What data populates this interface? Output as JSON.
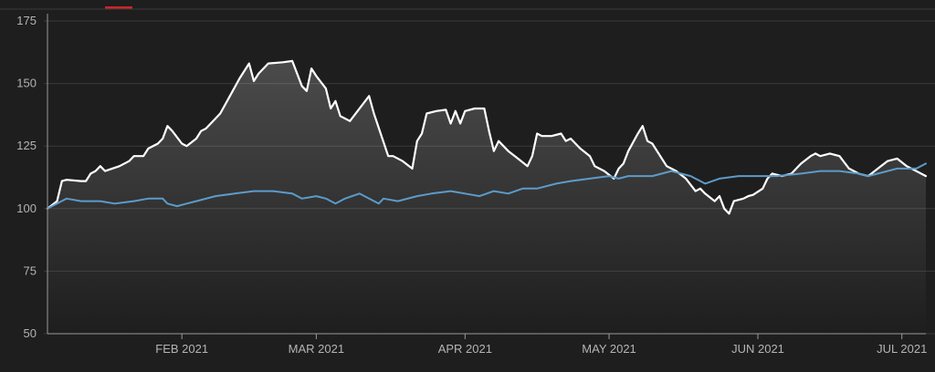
{
  "colors": {
    "background": "#1e1e1e",
    "grid": "#3a3a3a",
    "axis_text": "#b4b4b4",
    "primary_series": "#ffffff",
    "benchmark_series": "#5d9bc9",
    "accent_tab": "#c8262d"
  },
  "chart_data": {
    "type": "line",
    "title": "",
    "xlabel": "",
    "ylabel": "",
    "ylim": [
      50,
      175
    ],
    "yticks": [
      50,
      75,
      100,
      125,
      150,
      175
    ],
    "x_range": [
      "2021-01-04",
      "2021-07-06"
    ],
    "xticks": [
      {
        "date": "2021-02-01",
        "label": "FEB 2021"
      },
      {
        "date": "2021-03-01",
        "label": "MAR 2021"
      },
      {
        "date": "2021-04-01",
        "label": "APR 2021"
      },
      {
        "date": "2021-05-01",
        "label": "MAY 2021"
      },
      {
        "date": "2021-06-01",
        "label": "JUN 2021"
      },
      {
        "date": "2021-07-01",
        "label": "JUL 2021"
      }
    ],
    "grid": "horizontal",
    "legend": "none",
    "series": [
      {
        "color": "#ffffff",
        "area_fill": true,
        "points": [
          [
            "2021-01-04",
            100
          ],
          [
            "2021-01-06",
            103
          ],
          [
            "2021-01-07",
            111
          ],
          [
            "2021-01-08",
            111.5
          ],
          [
            "2021-01-11",
            111
          ],
          [
            "2021-01-12",
            111
          ],
          [
            "2021-01-13",
            114
          ],
          [
            "2021-01-14",
            115
          ],
          [
            "2021-01-15",
            117
          ],
          [
            "2021-01-16",
            115
          ],
          [
            "2021-01-19",
            117
          ],
          [
            "2021-01-21",
            119
          ],
          [
            "2021-01-22",
            121
          ],
          [
            "2021-01-24",
            121
          ],
          [
            "2021-01-25",
            124
          ],
          [
            "2021-01-27",
            126
          ],
          [
            "2021-01-28",
            128
          ],
          [
            "2021-01-29",
            133
          ],
          [
            "2021-01-30",
            131
          ],
          [
            "2021-02-01",
            126
          ],
          [
            "2021-02-02",
            125
          ],
          [
            "2021-02-04",
            128
          ],
          [
            "2021-02-05",
            131
          ],
          [
            "2021-02-06",
            132
          ],
          [
            "2021-02-08",
            136
          ],
          [
            "2021-02-09",
            138
          ],
          [
            "2021-02-11",
            145
          ],
          [
            "2021-02-13",
            152
          ],
          [
            "2021-02-15",
            158
          ],
          [
            "2021-02-16",
            151
          ],
          [
            "2021-02-17",
            154
          ],
          [
            "2021-02-19",
            158
          ],
          [
            "2021-02-22",
            158.5
          ],
          [
            "2021-02-24",
            159
          ],
          [
            "2021-02-26",
            149
          ],
          [
            "2021-02-27",
            147
          ],
          [
            "2021-02-28",
            156
          ],
          [
            "2021-03-01",
            153
          ],
          [
            "2021-03-03",
            148
          ],
          [
            "2021-03-04",
            140
          ],
          [
            "2021-03-05",
            143
          ],
          [
            "2021-03-06",
            137
          ],
          [
            "2021-03-08",
            135
          ],
          [
            "2021-03-12",
            145
          ],
          [
            "2021-03-13",
            138
          ],
          [
            "2021-03-16",
            121
          ],
          [
            "2021-03-17",
            121
          ],
          [
            "2021-03-19",
            119
          ],
          [
            "2021-03-21",
            116
          ],
          [
            "2021-03-22",
            127
          ],
          [
            "2021-03-23",
            130
          ],
          [
            "2021-03-24",
            138
          ],
          [
            "2021-03-26",
            139
          ],
          [
            "2021-03-28",
            139.5
          ],
          [
            "2021-03-29",
            134
          ],
          [
            "2021-03-30",
            139
          ],
          [
            "2021-03-31",
            134
          ],
          [
            "2021-04-01",
            139
          ],
          [
            "2021-04-03",
            140
          ],
          [
            "2021-04-05",
            140
          ],
          [
            "2021-04-06",
            131
          ],
          [
            "2021-04-07",
            123
          ],
          [
            "2021-04-08",
            127
          ],
          [
            "2021-04-10",
            123
          ],
          [
            "2021-04-12",
            120
          ],
          [
            "2021-04-14",
            117
          ],
          [
            "2021-04-15",
            121
          ],
          [
            "2021-04-16",
            130
          ],
          [
            "2021-04-17",
            129
          ],
          [
            "2021-04-19",
            129
          ],
          [
            "2021-04-21",
            130
          ],
          [
            "2021-04-22",
            127
          ],
          [
            "2021-04-23",
            128
          ],
          [
            "2021-04-25",
            124
          ],
          [
            "2021-04-27",
            121
          ],
          [
            "2021-04-28",
            117
          ],
          [
            "2021-04-30",
            115
          ],
          [
            "2021-05-02",
            112
          ],
          [
            "2021-05-03",
            116
          ],
          [
            "2021-05-04",
            118
          ],
          [
            "2021-05-05",
            123
          ],
          [
            "2021-05-07",
            130
          ],
          [
            "2021-05-08",
            133
          ],
          [
            "2021-05-09",
            127
          ],
          [
            "2021-05-10",
            126
          ],
          [
            "2021-05-13",
            117
          ],
          [
            "2021-05-15",
            115
          ],
          [
            "2021-05-17",
            112
          ],
          [
            "2021-05-19",
            107
          ],
          [
            "2021-05-20",
            108
          ],
          [
            "2021-05-21",
            106
          ],
          [
            "2021-05-23",
            103
          ],
          [
            "2021-05-24",
            105
          ],
          [
            "2021-05-25",
            100
          ],
          [
            "2021-05-26",
            98
          ],
          [
            "2021-05-27",
            103
          ],
          [
            "2021-05-29",
            104
          ],
          [
            "2021-05-30",
            105
          ],
          [
            "2021-05-31",
            105.5
          ],
          [
            "2021-06-02",
            108
          ],
          [
            "2021-06-03",
            112
          ],
          [
            "2021-06-04",
            114
          ],
          [
            "2021-06-06",
            113
          ],
          [
            "2021-06-08",
            114
          ],
          [
            "2021-06-10",
            118
          ],
          [
            "2021-06-12",
            121
          ],
          [
            "2021-06-13",
            122
          ],
          [
            "2021-06-14",
            121
          ],
          [
            "2021-06-16",
            122
          ],
          [
            "2021-06-18",
            121
          ],
          [
            "2021-06-20",
            116
          ],
          [
            "2021-06-22",
            114
          ],
          [
            "2021-06-24",
            113
          ],
          [
            "2021-06-26",
            116
          ],
          [
            "2021-06-28",
            119
          ],
          [
            "2021-06-30",
            120
          ],
          [
            "2021-07-02",
            117
          ],
          [
            "2021-07-04",
            115
          ],
          [
            "2021-07-06",
            113
          ]
        ]
      },
      {
        "color": "#5d9bc9",
        "area_fill": false,
        "points": [
          [
            "2021-01-04",
            100
          ],
          [
            "2021-01-06",
            102
          ],
          [
            "2021-01-08",
            104
          ],
          [
            "2021-01-11",
            103
          ],
          [
            "2021-01-13",
            103
          ],
          [
            "2021-01-15",
            103
          ],
          [
            "2021-01-18",
            102
          ],
          [
            "2021-01-22",
            103
          ],
          [
            "2021-01-25",
            104
          ],
          [
            "2021-01-28",
            104
          ],
          [
            "2021-01-29",
            102
          ],
          [
            "2021-01-31",
            101
          ],
          [
            "2021-02-02",
            102
          ],
          [
            "2021-02-04",
            103
          ],
          [
            "2021-02-08",
            105
          ],
          [
            "2021-02-12",
            106
          ],
          [
            "2021-02-16",
            107
          ],
          [
            "2021-02-20",
            107
          ],
          [
            "2021-02-24",
            106
          ],
          [
            "2021-02-26",
            104
          ],
          [
            "2021-03-01",
            105
          ],
          [
            "2021-03-03",
            104
          ],
          [
            "2021-03-05",
            102
          ],
          [
            "2021-03-07",
            104
          ],
          [
            "2021-03-10",
            106
          ],
          [
            "2021-03-12",
            104
          ],
          [
            "2021-03-14",
            102
          ],
          [
            "2021-03-15",
            104
          ],
          [
            "2021-03-18",
            103
          ],
          [
            "2021-03-22",
            105
          ],
          [
            "2021-03-25",
            106
          ],
          [
            "2021-03-29",
            107
          ],
          [
            "2021-04-01",
            106
          ],
          [
            "2021-04-04",
            105
          ],
          [
            "2021-04-07",
            107
          ],
          [
            "2021-04-10",
            106
          ],
          [
            "2021-04-13",
            108
          ],
          [
            "2021-04-16",
            108
          ],
          [
            "2021-04-20",
            110
          ],
          [
            "2021-04-23",
            111
          ],
          [
            "2021-04-27",
            112
          ],
          [
            "2021-05-01",
            113
          ],
          [
            "2021-05-03",
            112
          ],
          [
            "2021-05-05",
            113
          ],
          [
            "2021-05-10",
            113
          ],
          [
            "2021-05-14",
            115
          ],
          [
            "2021-05-18",
            113
          ],
          [
            "2021-05-21",
            110
          ],
          [
            "2021-05-24",
            112
          ],
          [
            "2021-05-28",
            113
          ],
          [
            "2021-06-01",
            113
          ],
          [
            "2021-06-05",
            113
          ],
          [
            "2021-06-10",
            114
          ],
          [
            "2021-06-14",
            115
          ],
          [
            "2021-06-18",
            115
          ],
          [
            "2021-06-22",
            114
          ],
          [
            "2021-06-24",
            113
          ],
          [
            "2021-06-26",
            114
          ],
          [
            "2021-06-30",
            116
          ],
          [
            "2021-07-04",
            116
          ],
          [
            "2021-07-06",
            118
          ]
        ]
      }
    ]
  }
}
